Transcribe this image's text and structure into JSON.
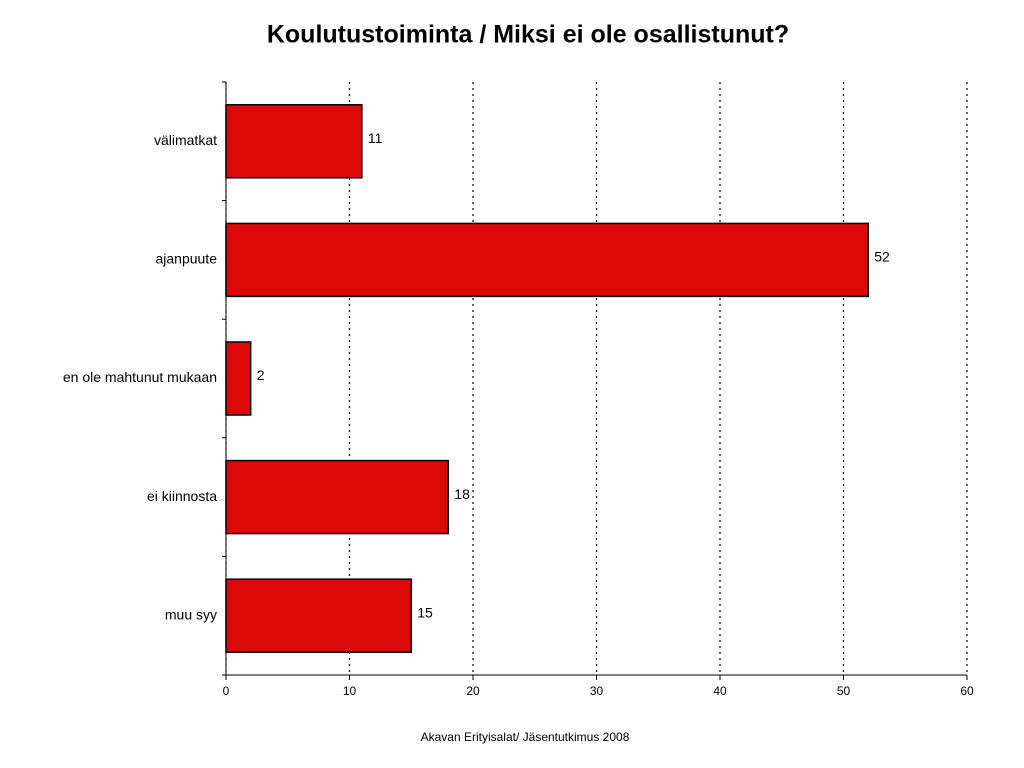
{
  "chart_data": {
    "type": "bar",
    "orientation": "horizontal",
    "title": "Koulutustoiminta / Miksi ei ole osallistunut?",
    "source": "Akavan Erityisalat/ Jäsentutkimus 2008",
    "categories": [
      "välimatkat",
      "ajanpuute",
      "en ole mahtunut mukaan",
      "ei kiinnosta",
      "muu syy"
    ],
    "values": [
      11,
      52,
      2,
      18,
      15
    ],
    "color": "#dd0808",
    "xlim": [
      0,
      60
    ],
    "xticks": [
      0,
      10,
      20,
      30,
      40,
      50,
      60
    ],
    "grid": true
  }
}
